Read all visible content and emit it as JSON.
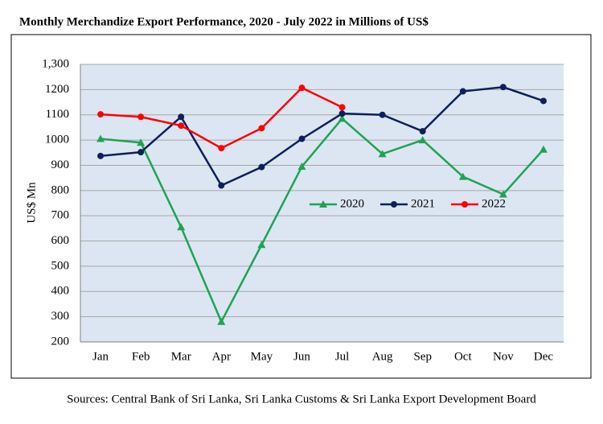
{
  "chart_data": {
    "type": "line",
    "title": "Monthly Merchandize Export Performance, 2020 - July 2022 in Millions of US$",
    "y_label": "US$ Mn",
    "source": "Sources: Central Bank of Sri Lanka, Sri Lanka Customs & Sri Lanka Export Development Board",
    "categories": [
      "Jan",
      "Feb",
      "Mar",
      "Apr",
      "May",
      "Jun",
      "Jul",
      "Aug",
      "Sep",
      "Oct",
      "Nov",
      "Dec"
    ],
    "series": [
      {
        "name": "2020",
        "color": "#1fa353",
        "marker": "triangle",
        "values": [
          1005,
          990,
          655,
          280,
          585,
          895,
          1085,
          945,
          1000,
          855,
          785,
          963
        ]
      },
      {
        "name": "2021",
        "color": "#0d1f5c",
        "marker": "circle",
        "values": [
          937,
          952,
          1092,
          820,
          893,
          1005,
          1105,
          1100,
          1035,
          1193,
          1210,
          1155
        ]
      },
      {
        "name": "2022",
        "color": "#ff0000",
        "marker": "circle",
        "values": [
          1102,
          1092,
          1057,
          968,
          1047,
          1207,
          1130,
          null,
          null,
          null,
          null,
          null
        ]
      }
    ],
    "ylim": [
      200,
      1300
    ],
    "yticks": [
      200,
      300,
      400,
      500,
      600,
      700,
      800,
      900,
      1000,
      1100,
      1200,
      {
        "value": 1300,
        "label": "1,300"
      }
    ],
    "grid": true,
    "legend": "center"
  }
}
